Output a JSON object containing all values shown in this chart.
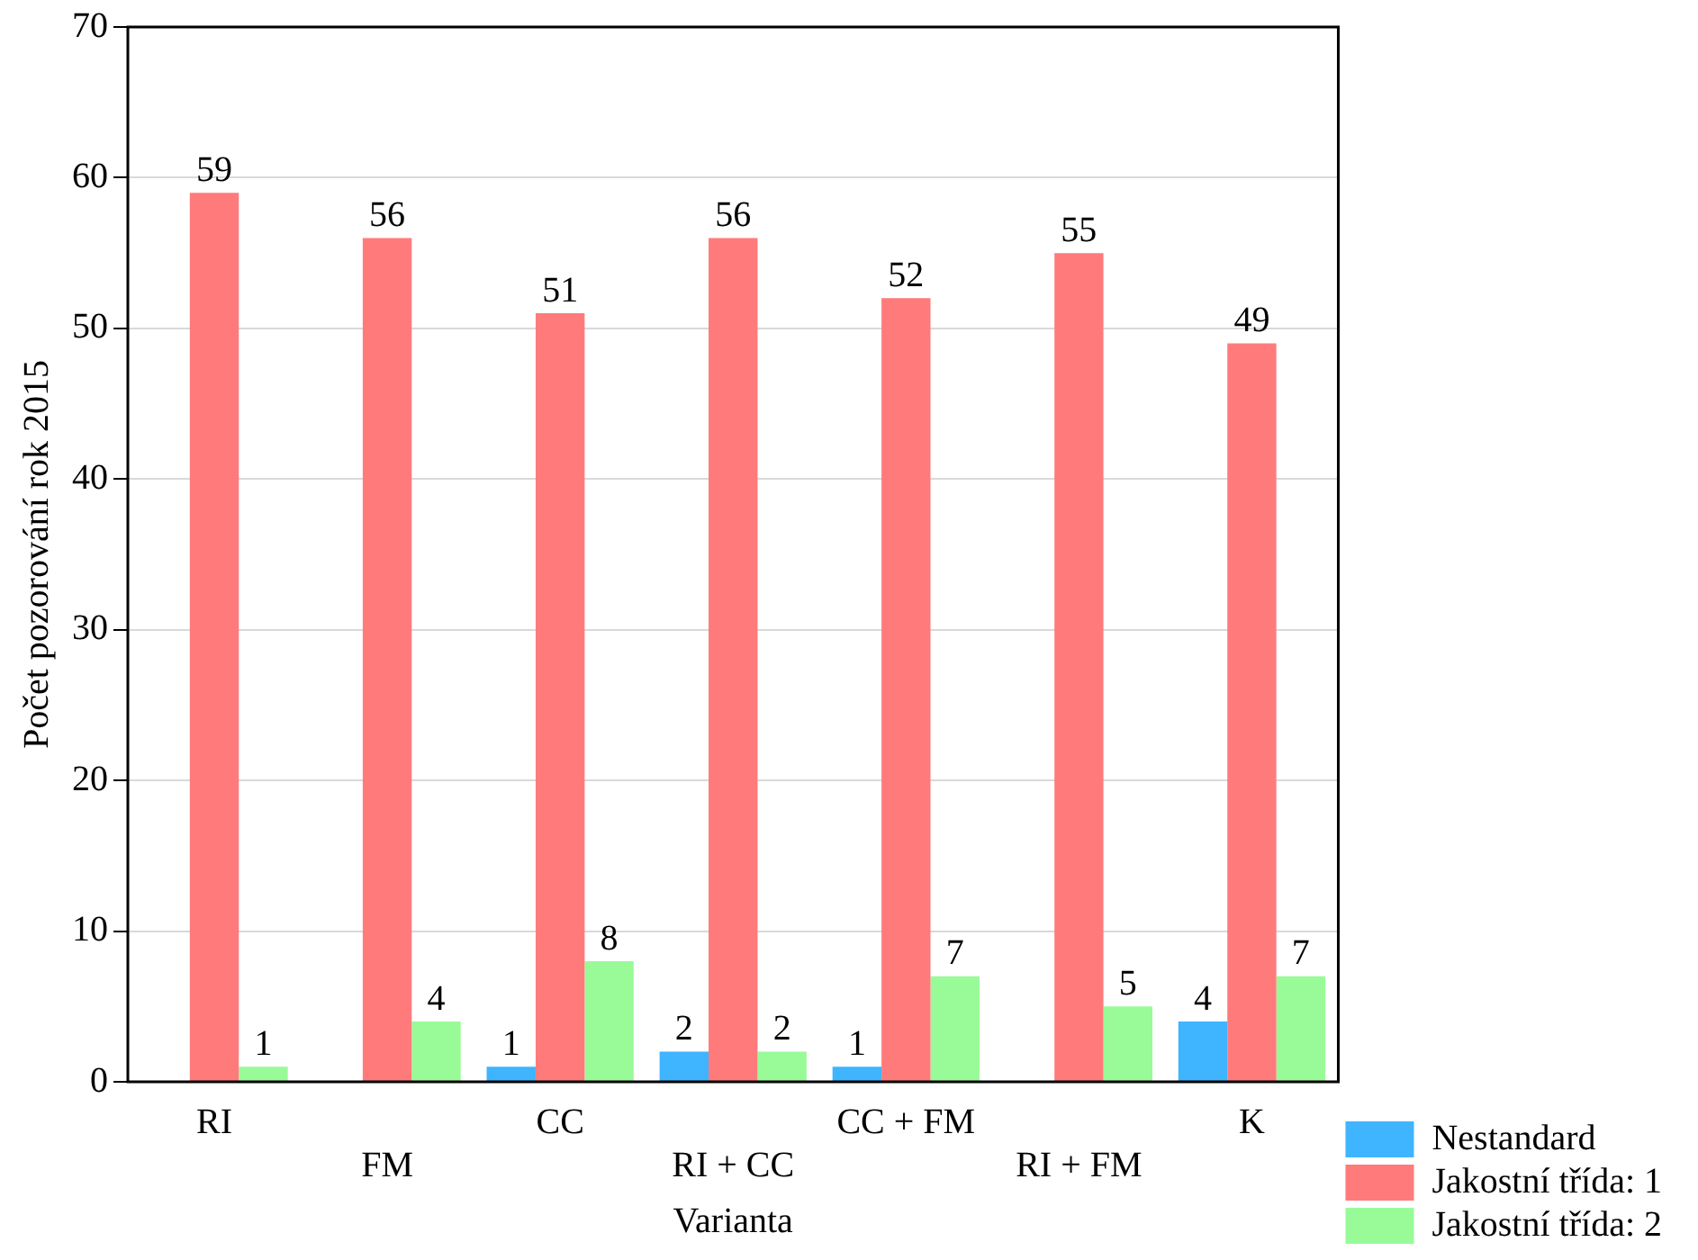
{
  "chart_data": {
    "type": "bar",
    "xlabel": "Varianta",
    "ylabel": "Počet pozorování rok 2015",
    "categories": [
      "RI",
      "FM",
      "CC",
      "RI + CC",
      "CC + FM",
      "RI + FM",
      "K"
    ],
    "series": [
      {
        "name": "Nestandard",
        "color": "#3fb4ff",
        "values": [
          null,
          null,
          1,
          2,
          1,
          null,
          4
        ]
      },
      {
        "name": "Jakostní třída: 1",
        "color": "#ff7b7b",
        "values": [
          59,
          56,
          51,
          56,
          52,
          55,
          49
        ]
      },
      {
        "name": "Jakostní třída: 2",
        "color": "#98fb98",
        "values": [
          1,
          4,
          8,
          2,
          7,
          5,
          7
        ]
      }
    ],
    "ylim": [
      0,
      70
    ],
    "yticks": [
      0,
      10,
      20,
      30,
      40,
      50,
      60,
      70
    ],
    "grid": "y",
    "legend": "bottom right",
    "data_labels": true
  }
}
